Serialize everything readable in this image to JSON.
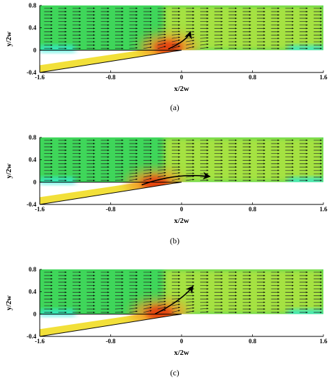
{
  "figure": {
    "panels": [
      {
        "caption": "(a)",
        "variant": "a"
      },
      {
        "caption": "(b)",
        "variant": "b"
      },
      {
        "caption": "(c)",
        "variant": "c"
      }
    ]
  },
  "chart_data": [
    {
      "type": "vector-contour",
      "panel": "(a)",
      "xlabel": "x/2w",
      "ylabel": "y/2w",
      "xlim": [
        -1.6,
        1.6
      ],
      "ylim": [
        -0.4,
        0.8
      ],
      "xticks": [
        "-1.6",
        "-0.8",
        "0",
        "0.8",
        "1.6"
      ],
      "yticks": [
        "0.8",
        "0.4",
        "0",
        "-0.4"
      ],
      "inlet_slot": {
        "from": [
          -1.6,
          -0.4
        ],
        "to": [
          0.0,
          0.0
        ]
      },
      "hotspot": {
        "x": -0.15,
        "y": 0.05
      },
      "flow_arrow": {
        "from": [
          -0.15,
          0.02
        ],
        "to": [
          0.1,
          0.33
        ]
      },
      "colors": {
        "freestream": "#3fd65a",
        "wall_layer": "#30ecd8",
        "jet": "#f2e03a",
        "peak": "#e23a10"
      }
    },
    {
      "type": "vector-contour",
      "panel": "(b)",
      "xlabel": "x/2w",
      "ylabel": "y/2w",
      "xlim": [
        -1.6,
        1.6
      ],
      "ylim": [
        -0.4,
        0.8
      ],
      "xticks": [
        "-1.6",
        "-0.8",
        "0",
        "0.8",
        "1.6"
      ],
      "yticks": [
        "0.8",
        "0.4",
        "0",
        "-0.4"
      ],
      "inlet_slot": {
        "from": [
          -1.6,
          -0.4
        ],
        "to": [
          0.0,
          0.0
        ]
      },
      "hotspot": {
        "x": -0.3,
        "y": -0.02
      },
      "flow_arrow": {
        "from": [
          -0.45,
          -0.05
        ],
        "to": [
          0.32,
          0.1
        ]
      },
      "colors": {
        "freestream": "#3fd65a",
        "wall_layer": "#30ecd8",
        "jet": "#f2e03a",
        "peak": "#e23a10"
      }
    },
    {
      "type": "vector-contour",
      "panel": "(c)",
      "xlabel": "x/2w",
      "ylabel": "y/2w",
      "xlim": [
        -1.6,
        1.6
      ],
      "ylim": [
        -0.4,
        0.8
      ],
      "xticks": [
        "-1.6",
        "-0.8",
        "0",
        "0.8",
        "1.6"
      ],
      "yticks": [
        "0.8",
        "0.4",
        "0",
        "-0.4"
      ],
      "inlet_slot": {
        "from": [
          -1.6,
          -0.4
        ],
        "to": [
          0.0,
          0.0
        ]
      },
      "hotspot": {
        "x": -0.25,
        "y": 0.02
      },
      "flow_arrow": {
        "from": [
          -0.3,
          0.0
        ],
        "to": [
          0.13,
          0.5
        ]
      },
      "colors": {
        "freestream": "#3fd65a",
        "wall_layer": "#30ecd8",
        "jet": "#f2e03a",
        "peak": "#e23a10"
      }
    }
  ]
}
